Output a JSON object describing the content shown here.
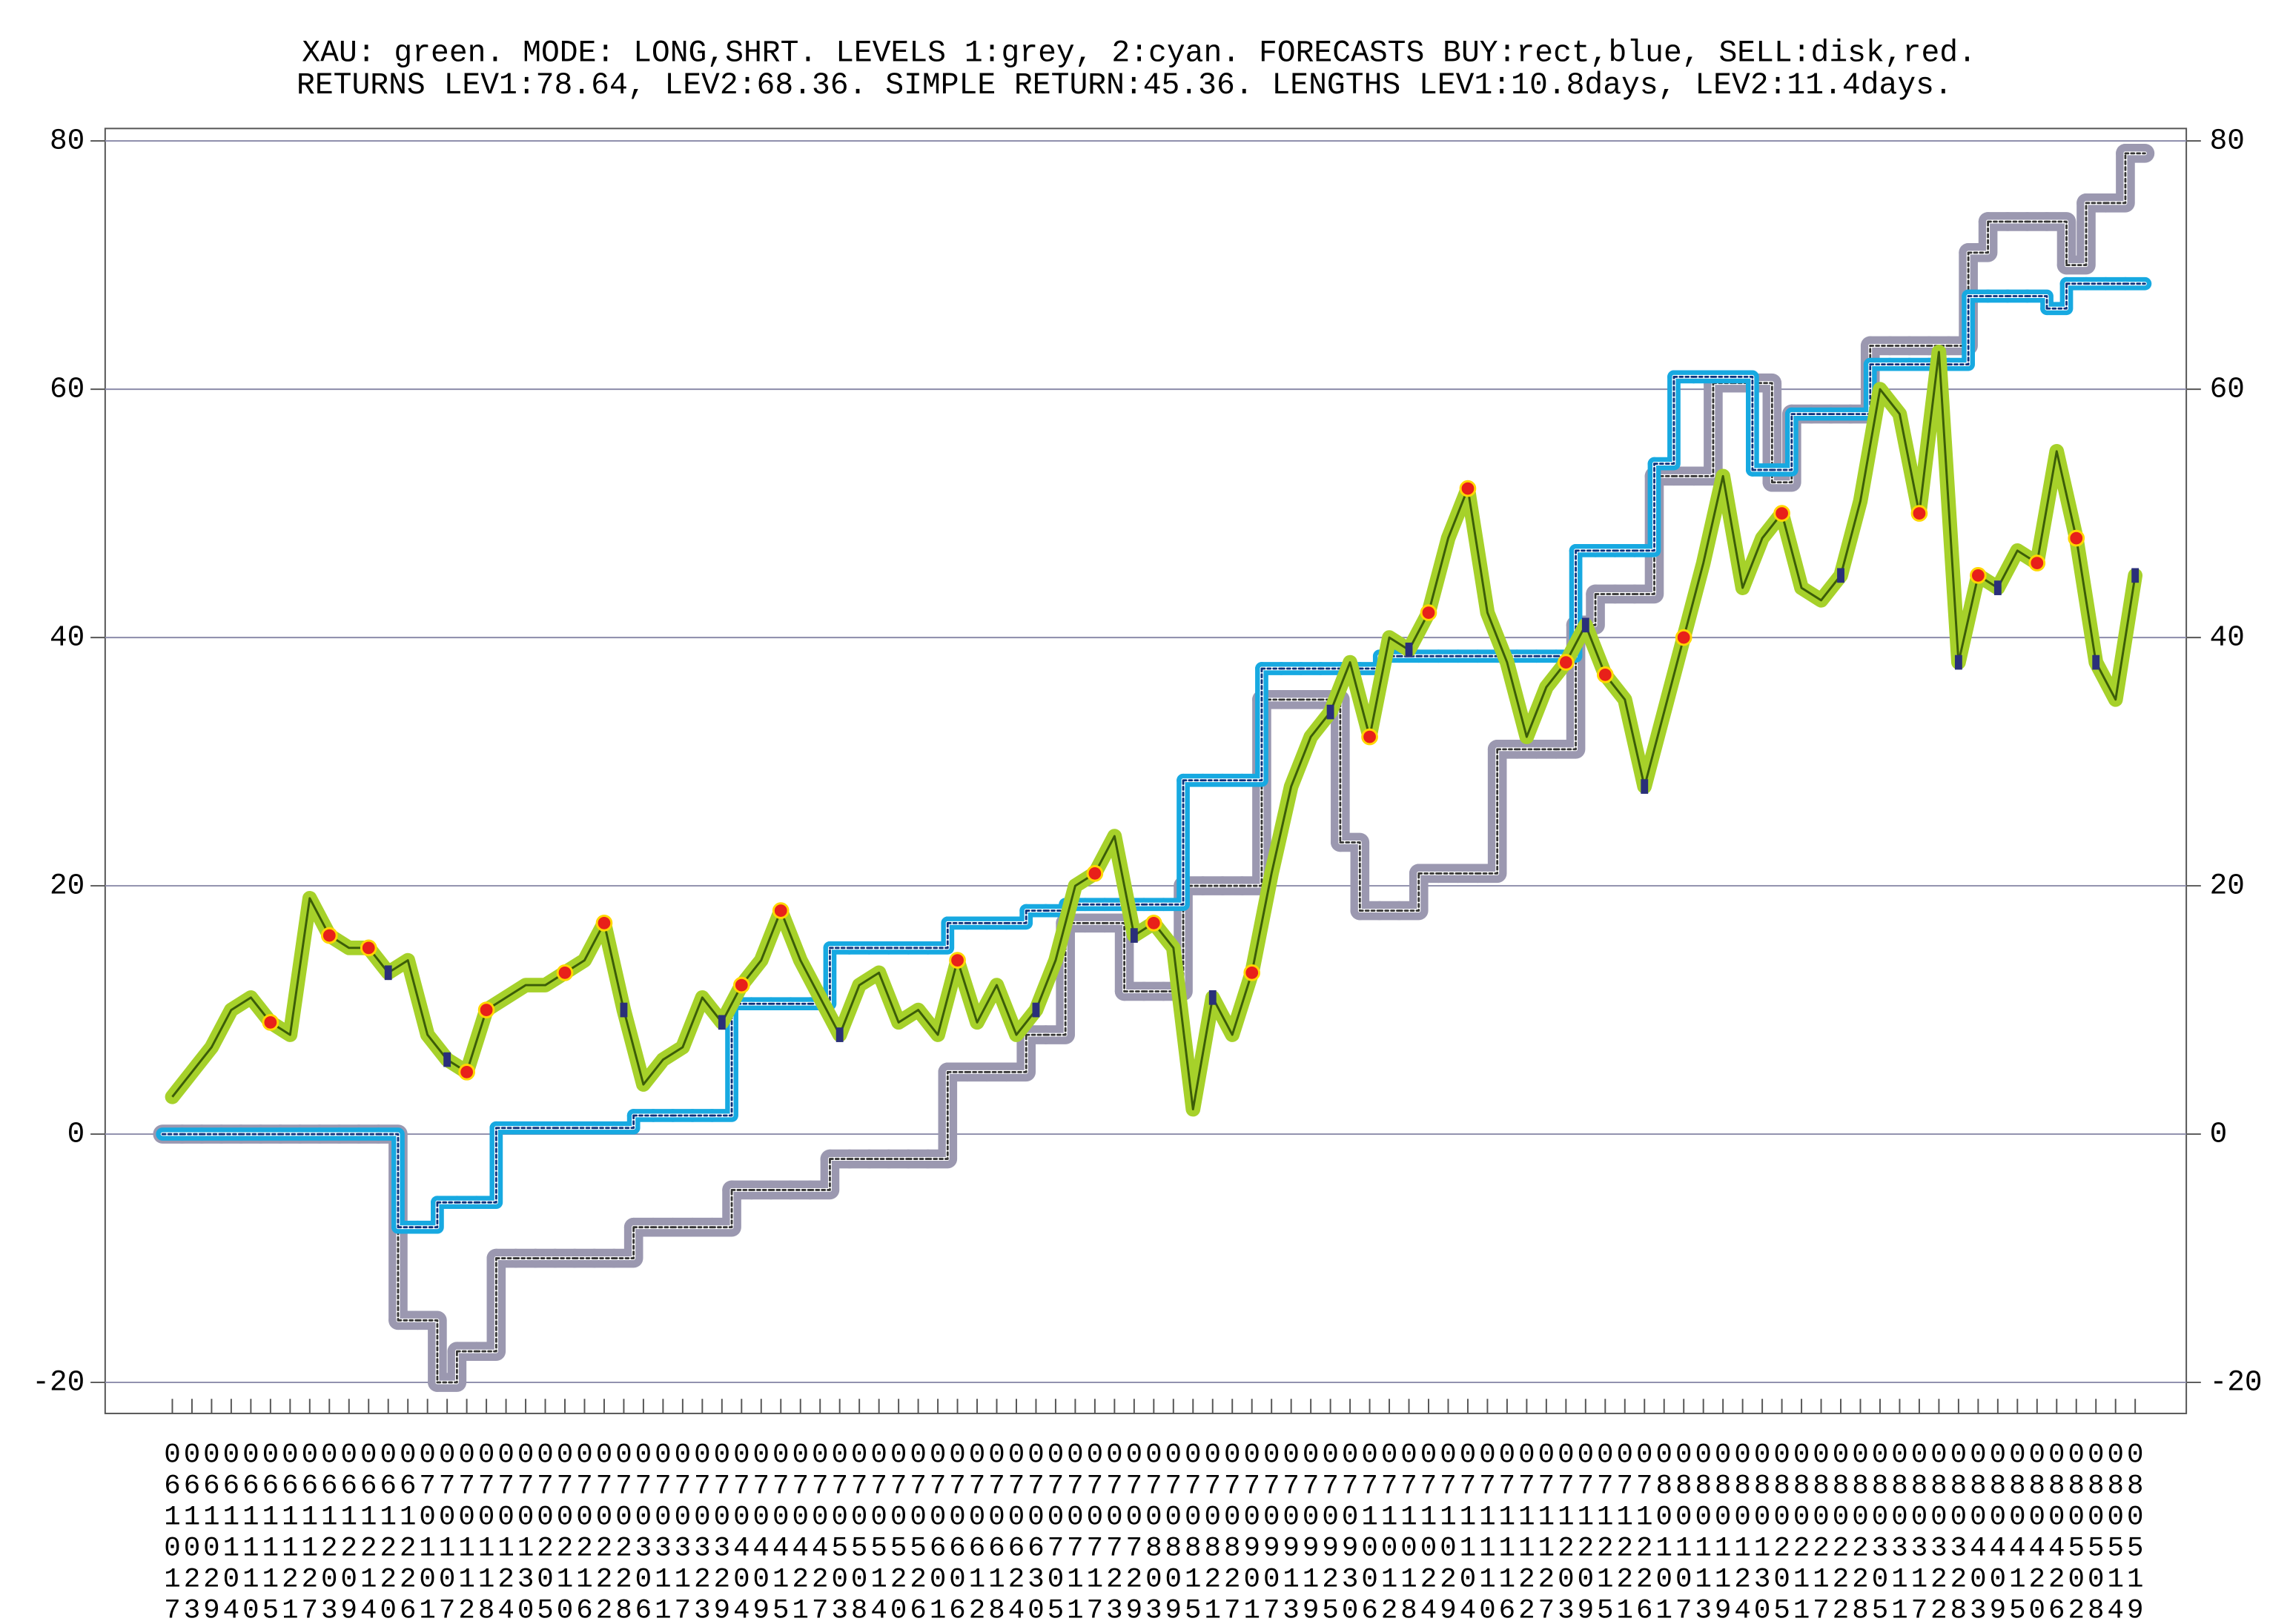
{
  "chart_data": {
    "type": "line",
    "title": "XAU: green. MODE: LONG,SHRT. LEVELS 1:grey, 2:cyan. FORECASTS BUY:rect,blue, SELL:disk,red.",
    "subtitle": "RETURNS LEV1:78.64, LEV2:68.36. SIMPLE RETURN:45.36. LENGTHS LEV1:10.8days, LEV2:11.4days.",
    "categories": [
      "061017",
      "061023",
      "061029",
      "061104",
      "061110",
      "061115",
      "061121",
      "061127",
      "061203",
      "061209",
      "061214",
      "061220",
      "061226",
      "070101",
      "070107",
      "070112",
      "070118",
      "070124",
      "070130",
      "070205",
      "070210",
      "070216",
      "070222",
      "070228",
      "070306",
      "070311",
      "070317",
      "070323",
      "070329",
      "070404",
      "070409",
      "070415",
      "070421",
      "070427",
      "070503",
      "070508",
      "070514",
      "070520",
      "070526",
      "070601",
      "070606",
      "070612",
      "070618",
      "070624",
      "070630",
      "070705",
      "070711",
      "070717",
      "070723",
      "070729",
      "070803",
      "070809",
      "070815",
      "070821",
      "070827",
      "070901",
      "070907",
      "070913",
      "070919",
      "070925",
      "070930",
      "071006",
      "071012",
      "071018",
      "071024",
      "071029",
      "071104",
      "071110",
      "071116",
      "071122",
      "071127",
      "071203",
      "071209",
      "071215",
      "071221",
      "071226",
      "080101",
      "080107",
      "080113",
      "080119",
      "080124",
      "080130",
      "080205",
      "080211",
      "080217",
      "080222",
      "080228",
      "080305",
      "080311",
      "080317",
      "080322",
      "080328",
      "080403",
      "080409",
      "080415",
      "080420",
      "080426",
      "080502",
      "080508",
      "080514",
      "080519"
    ],
    "series": [
      {
        "style": "line",
        "color": "#a6d12a",
        "values": [
          3,
          5,
          7,
          10,
          11,
          9,
          8,
          19,
          16,
          15,
          15,
          13,
          14,
          8,
          6,
          5,
          10,
          11,
          12,
          12,
          13,
          14,
          17,
          10,
          4,
          6,
          7,
          11,
          9,
          12,
          14,
          18,
          14,
          11,
          8,
          12,
          13,
          9,
          10,
          8,
          14,
          9,
          12,
          8,
          10,
          14,
          20,
          21,
          24,
          16,
          17,
          15,
          2,
          11,
          8,
          13,
          21,
          28,
          32,
          34,
          38,
          32,
          40,
          39,
          42,
          48,
          52,
          42,
          38,
          32,
          36,
          38,
          41,
          37,
          35,
          28,
          34,
          40,
          46,
          53,
          44,
          48,
          50,
          44,
          43,
          45,
          51,
          60,
          58,
          50,
          63,
          38,
          45,
          44,
          47,
          46,
          55,
          48,
          38,
          35,
          45
        ]
      },
      {
        "style": "step",
        "color": "#9b98b0",
        "values": [
          0,
          0,
          0,
          0,
          0,
          0,
          0,
          0,
          0,
          0,
          0,
          0,
          -15,
          -15,
          -20,
          -17.5,
          -17.5,
          -10,
          -10,
          -10,
          -10,
          -10,
          -10,
          -10,
          -7.5,
          -7.5,
          -7.5,
          -7.5,
          -7.5,
          -4.5,
          -4.5,
          -4.5,
          -4.5,
          -4.5,
          -2,
          -2,
          -2,
          -2,
          -2,
          -2,
          5,
          5,
          5,
          5,
          8,
          8,
          17,
          17,
          17,
          11.5,
          11.5,
          11.5,
          20,
          20,
          20,
          20,
          35,
          35,
          35,
          35,
          23.5,
          18,
          18,
          18,
          21,
          21,
          21,
          21,
          31,
          31,
          31,
          31,
          41,
          43.5,
          43.5,
          43.5,
          53,
          53,
          53,
          60.5,
          60.5,
          60.5,
          52.5,
          58,
          58,
          58,
          58,
          63.5,
          63.5,
          63.5,
          63.5,
          63.5,
          71,
          73.5,
          73.5,
          73.5,
          73.5,
          70,
          75,
          75,
          79
        ]
      },
      {
        "style": "step",
        "color": "#17a9e1",
        "values": [
          0,
          0,
          0,
          0,
          0,
          0,
          0,
          0,
          0,
          0,
          0,
          0,
          -7.5,
          -7.5,
          -5.5,
          -5.5,
          -5.5,
          0.5,
          0.5,
          0.5,
          0.5,
          0.5,
          0.5,
          0.5,
          1.5,
          1.5,
          1.5,
          1.5,
          1.5,
          10.5,
          10.5,
          10.5,
          10.5,
          10.5,
          15,
          15,
          15,
          15,
          15,
          15,
          17,
          17,
          17,
          17,
          18,
          18,
          18.5,
          18.5,
          18.5,
          18.5,
          18.5,
          18.5,
          28.5,
          28.5,
          28.5,
          28.5,
          37.5,
          37.5,
          37.5,
          37.5,
          37.5,
          37.5,
          38.5,
          38.5,
          38.5,
          38.5,
          38.5,
          38.5,
          38.5,
          38.5,
          38.5,
          38.5,
          47,
          47,
          47,
          47,
          54,
          61,
          61,
          61,
          61,
          53.5,
          53.5,
          58,
          58,
          58,
          58,
          62,
          62,
          62,
          62,
          62,
          67.5,
          67.5,
          67.5,
          67.5,
          66.5,
          68.5,
          68.5,
          68.5,
          68.5
        ]
      }
    ],
    "sell_at": [
      5,
      8,
      10,
      15,
      16,
      20,
      22,
      29,
      31,
      40,
      47,
      50,
      55,
      61,
      64,
      66,
      71,
      73,
      77,
      82,
      89,
      92,
      95,
      97
    ],
    "sell_color": "#e8201a",
    "buy_at": [
      11,
      14,
      23,
      28,
      34,
      44,
      49,
      53,
      59,
      63,
      72,
      75,
      85,
      91,
      93,
      98,
      100
    ],
    "buy_color": "#2a2f7a",
    "ylim": [
      -22.5,
      81
    ],
    "yticks": [
      -20,
      0,
      20,
      40,
      60,
      80
    ],
    "grid": true
  }
}
